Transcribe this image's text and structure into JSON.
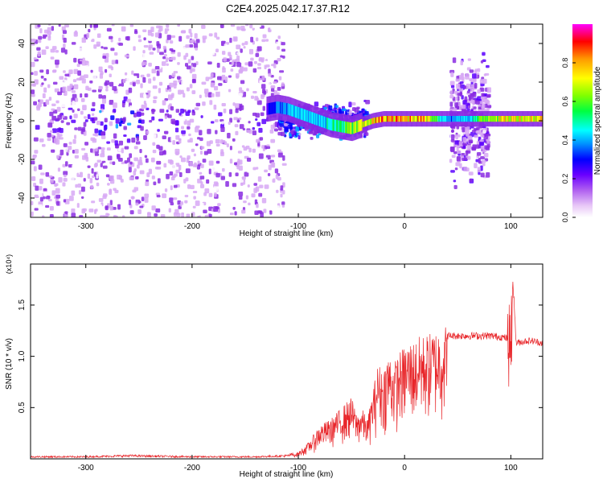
{
  "page_title": "C2E4.2025.042.17.37.R12",
  "chart_data": [
    {
      "type": "heatmap",
      "xlabel": "Height of straight line (km)",
      "ylabel": "Frequency (Hz)",
      "xlim": [
        -352,
        130
      ],
      "ylim": [
        -50,
        50
      ],
      "x_ticks": [
        -300,
        -200,
        -100,
        0,
        100
      ],
      "y_ticks": [
        -40,
        -20,
        0,
        20,
        40
      ],
      "colorbar": {
        "label": "Normalized spectral amplitude",
        "range": [
          0,
          1
        ],
        "ticks": [
          "0.0",
          "0.2",
          "0.4",
          "0.6",
          "0.8"
        ],
        "colors": [
          "#ffffff",
          "#d7a8f5",
          "#8a2be2",
          "#5a00ff",
          "#0000ff",
          "#00a0ff",
          "#00ffff",
          "#00ff40",
          "#80ff00",
          "#ffff00",
          "#ffa500",
          "#ff0000",
          "#ff00ff"
        ]
      },
      "regions": [
        {
          "x_range": [
            -352,
            -115
          ],
          "freq_range": [
            -50,
            50
          ],
          "level": 0.15
        },
        {
          "x_range": [
            -120,
            -35
          ],
          "freq_range": [
            -10,
            10
          ],
          "level": 0.35
        },
        {
          "x_range": [
            42,
            78
          ],
          "freq_range": [
            -35,
            35
          ],
          "level": 0.2
        }
      ],
      "trace": {
        "x": [
          -130,
          -120,
          -110,
          -100,
          -90,
          -80,
          -70,
          -60,
          -50,
          -40,
          -30,
          -20,
          0,
          20,
          40,
          60,
          80,
          100,
          130
        ],
        "freq": [
          6,
          7,
          6,
          4,
          2,
          0,
          -2,
          -3,
          -4,
          -2,
          0,
          1,
          1,
          1,
          1,
          1,
          1,
          1,
          1
        ],
        "amplitude": [
          0.35,
          0.4,
          0.45,
          0.5,
          0.5,
          0.5,
          0.55,
          0.6,
          0.7,
          0.75,
          0.8,
          0.85,
          0.85,
          0.85,
          0.45,
          0.5,
          0.75,
          0.8,
          0.8
        ]
      }
    },
    {
      "type": "line",
      "xlabel": "Height of straight line (km)",
      "ylabel": "SNR (10 * v/v)",
      "y_multiplier_label": "(x10⁴)",
      "xlim": [
        -352,
        130
      ],
      "ylim": [
        0,
        1.9
      ],
      "x_ticks": [
        -300,
        -200,
        -100,
        0,
        100
      ],
      "y_ticks": [
        "0.5",
        "1.0",
        "1.5"
      ],
      "series_color": "#e8262a",
      "envelope_x": [
        -352,
        -300,
        -260,
        -200,
        -140,
        -110,
        -100,
        -90,
        -80,
        -70,
        -60,
        -50,
        -45,
        -40,
        -35,
        -30,
        -25,
        -20,
        -15,
        -10,
        -5,
        0,
        5,
        10,
        15,
        20,
        30,
        40,
        60,
        80,
        90,
        95,
        100,
        102,
        105,
        110,
        115,
        120,
        130
      ],
      "envelope_y": [
        0.02,
        0.02,
        0.03,
        0.02,
        0.02,
        0.03,
        0.06,
        0.15,
        0.3,
        0.35,
        0.45,
        0.55,
        0.4,
        0.45,
        0.35,
        0.6,
        0.85,
        0.8,
        0.95,
        0.85,
        0.95,
        1.0,
        1.05,
        1.05,
        1.1,
        1.1,
        1.15,
        1.2,
        1.2,
        1.2,
        1.19,
        1.18,
        1.15,
        1.75,
        1.13,
        1.14,
        1.15,
        1.15,
        1.13
      ]
    }
  ]
}
